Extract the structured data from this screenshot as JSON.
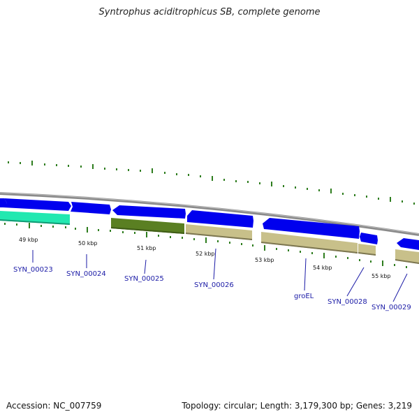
{
  "title": "Syntrophus aciditrophicus SB, complete genome",
  "footer": {
    "accession": "Accession: NC_007759",
    "stats": "Topology: circular; Length: 3,179,300 bp; Genes: 3,219"
  },
  "scale_labels": [
    "49 kbp",
    "50 kbp",
    "51 kbp",
    "52 kbp",
    "53 kbp",
    "54 kbp",
    "55 kbp"
  ],
  "gene_labels": [
    "SYN_00023",
    "SYN_00024",
    "SYN_00025",
    "SYN_00026",
    "groEL",
    "SYN_00028",
    "SYN_00029"
  ],
  "colors": {
    "cds_forward": "#0000ee",
    "cyan_feature": "#22e8b0",
    "green_feature": "#5a7f22",
    "khaki_feature": "#c8c08a",
    "backbone": "#8a8a8a",
    "ticks": "#2e7d1e",
    "label": "#1a1aa6"
  }
}
